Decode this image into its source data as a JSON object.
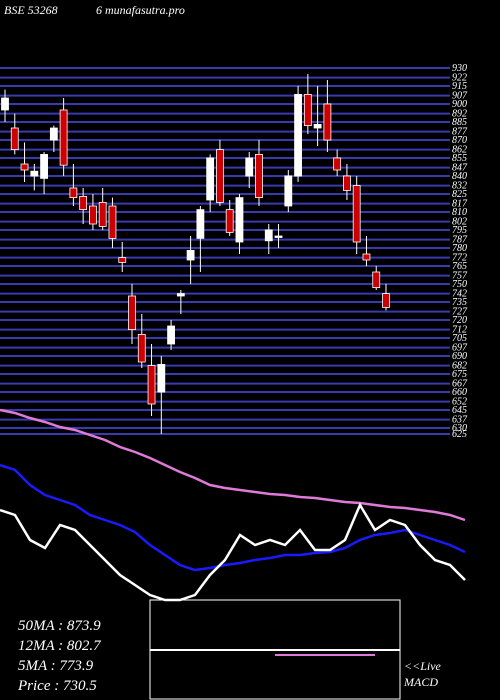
{
  "chart_data": [
    {
      "type": "candlestick",
      "title": "BSE 53268",
      "subtitle": "6 munafasutra.pro",
      "ylim": [
        620,
        935
      ],
      "yticks": [
        930,
        922,
        915,
        907,
        900,
        892,
        885,
        877,
        870,
        862,
        855,
        847,
        840,
        832,
        825,
        817,
        810,
        802,
        795,
        787,
        780,
        772,
        765,
        757,
        750,
        742,
        735,
        727,
        720,
        712,
        705,
        697,
        690,
        682,
        675,
        667,
        660,
        652,
        645,
        637,
        630,
        625
      ],
      "grid_color": "#3a3ab0",
      "up_color": "#ffffff",
      "down_color": "#cc0000",
      "open": [
        895,
        880,
        850,
        840,
        838,
        870,
        895,
        830,
        823,
        815,
        818,
        815,
        772,
        740,
        708,
        682,
        660,
        700,
        740,
        770,
        788,
        820,
        862,
        812,
        785,
        840,
        858,
        786,
        790,
        815,
        840,
        908,
        880,
        900,
        855,
        840,
        832,
        775,
        760,
        742
      ],
      "high": [
        912,
        892,
        868,
        850,
        860,
        882,
        905,
        850,
        830,
        825,
        830,
        822,
        785,
        750,
        725,
        700,
        690,
        720,
        745,
        790,
        815,
        858,
        870,
        820,
        825,
        860,
        870,
        800,
        800,
        845,
        915,
        925,
        915,
        920,
        862,
        850,
        840,
        790,
        765,
        750
      ],
      "low": [
        885,
        858,
        835,
        828,
        825,
        860,
        840,
        815,
        800,
        795,
        795,
        780,
        760,
        700,
        680,
        640,
        625,
        695,
        725,
        750,
        760,
        810,
        815,
        790,
        775,
        830,
        815,
        775,
        780,
        810,
        835,
        875,
        865,
        860,
        840,
        820,
        775,
        765,
        745,
        728
      ],
      "close": [
        905,
        862,
        845,
        844,
        858,
        880,
        849,
        822,
        812,
        800,
        798,
        788,
        768,
        712,
        685,
        650,
        683,
        715,
        742,
        778,
        812,
        855,
        818,
        793,
        822,
        855,
        822,
        795,
        790,
        840,
        908,
        882,
        883,
        870,
        845,
        828,
        785,
        770,
        747,
        730.5
      ]
    },
    {
      "type": "line",
      "ylim": [
        0,
        100
      ],
      "series": [
        {
          "name": "50MA",
          "color": "#e07ad8",
          "values": [
            95,
            93.5,
            91,
            89,
            86.5,
            85,
            82.5,
            80,
            76.5,
            74,
            71,
            67.5,
            64,
            61,
            57.5,
            56,
            55,
            54,
            53,
            52.5,
            51.5,
            51,
            50,
            49,
            48.5,
            47.5,
            46.5,
            46,
            45,
            44,
            42.5,
            40
          ]
        },
        {
          "name": "12MA",
          "color": "#1a1aff",
          "values": [
            67.5,
            65,
            57.5,
            52.5,
            50,
            47.5,
            42.5,
            40,
            37.5,
            34,
            27.5,
            22.5,
            17.5,
            15,
            16,
            17.5,
            18.5,
            20,
            21,
            22.5,
            22.5,
            23.5,
            24,
            26,
            30,
            32.5,
            33.5,
            35,
            32.5,
            30,
            27.5,
            24
          ]
        },
        {
          "name": "5MA",
          "color": "#ffffff",
          "values": [
            45,
            42.5,
            30,
            26,
            37.5,
            35,
            27.5,
            20,
            12.5,
            7.5,
            2.5,
            0,
            0,
            2.5,
            12.5,
            20,
            32.5,
            27.5,
            30,
            27.5,
            35,
            25,
            25,
            30,
            47.5,
            35,
            40,
            37.5,
            27.5,
            20,
            17.5,
            10
          ]
        }
      ],
      "stats": [
        "50MA : 873.9",
        "12MA : 802.7",
        "5MA : 773.9",
        "Price   : 730.5"
      ],
      "macd_label": [
        "<<Live",
        "MACD"
      ]
    }
  ]
}
